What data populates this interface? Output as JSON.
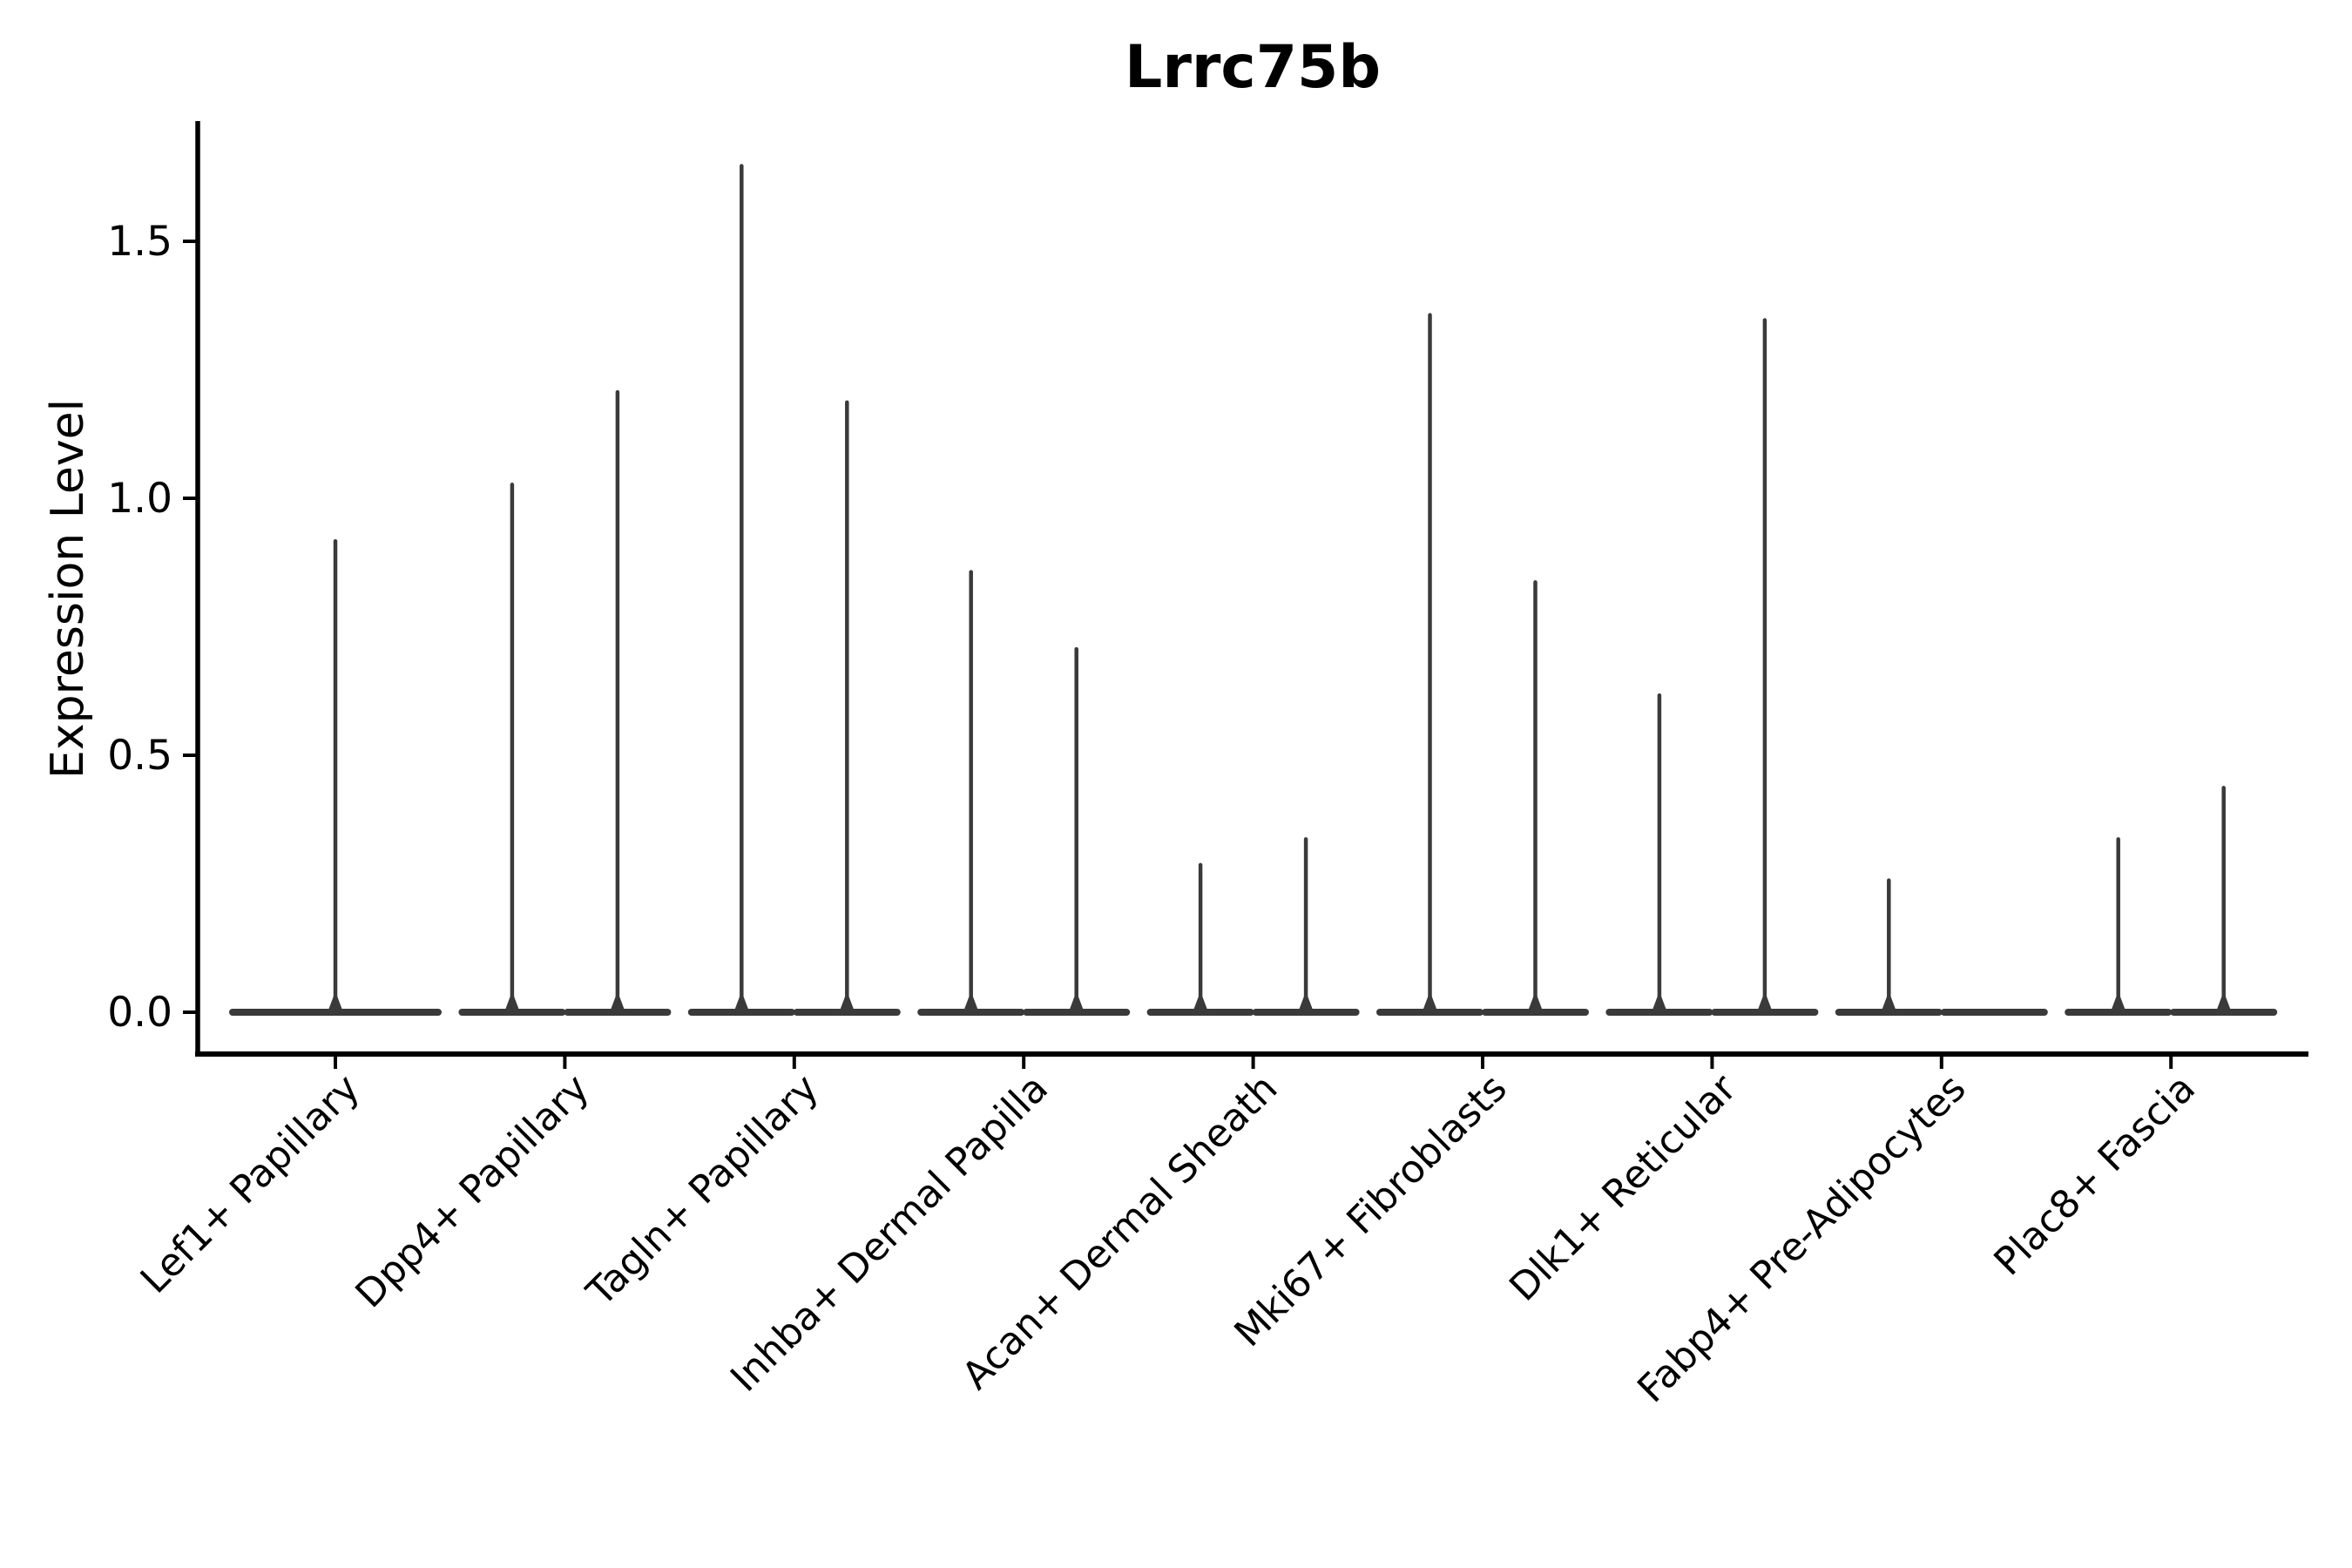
{
  "figure": {
    "background_color": "#ffffff"
  },
  "chart_data": {
    "type": "violin",
    "title": "Lrrc75b",
    "xlabel": "",
    "ylabel": "Expression Level",
    "ylim": [
      -0.08,
      1.73
    ],
    "yticks": [
      {
        "value": 0.0,
        "label": "0.0"
      },
      {
        "value": 0.5,
        "label": "0.5"
      },
      {
        "value": 1.0,
        "label": "1.0"
      },
      {
        "value": 1.5,
        "label": "1.5"
      }
    ],
    "grid": false,
    "legend": false,
    "violin_color": "#3a3a3a",
    "axis_color": "#000000",
    "x_tick_label_rotation_deg": 45,
    "categories": [
      {
        "label": "Lef1+ Papillary",
        "violins": [
          {
            "position": "center",
            "max_expression": 0.92
          }
        ]
      },
      {
        "label": "Dpp4+ Papillary",
        "violins": [
          {
            "position": "left",
            "max_expression": 1.03
          },
          {
            "position": "right",
            "max_expression": 1.21
          }
        ]
      },
      {
        "label": "Tagln+ Papillary",
        "violins": [
          {
            "position": "left",
            "max_expression": 1.65
          },
          {
            "position": "right",
            "max_expression": 1.19
          }
        ]
      },
      {
        "label": "Inhba+ Dermal Papilla",
        "violins": [
          {
            "position": "left",
            "max_expression": 0.86
          },
          {
            "position": "right",
            "max_expression": 0.71
          }
        ]
      },
      {
        "label": "Acan+ Dermal Sheath",
        "violins": [
          {
            "position": "left",
            "max_expression": 0.29
          },
          {
            "position": "right",
            "max_expression": 0.34
          }
        ]
      },
      {
        "label": "Mki67+ Fibroblasts",
        "violins": [
          {
            "position": "left",
            "max_expression": 1.36
          },
          {
            "position": "right",
            "max_expression": 0.84
          }
        ]
      },
      {
        "label": "Dlk1+ Reticular",
        "violins": [
          {
            "position": "left",
            "max_expression": 0.62
          },
          {
            "position": "right",
            "max_expression": 1.35
          }
        ]
      },
      {
        "label": "Fabp4+ Pre-Adipocytes",
        "violins": [
          {
            "position": "left",
            "max_expression": 0.26
          },
          {
            "position": "right",
            "max_expression": 0.0
          }
        ]
      },
      {
        "label": "Plac8+ Fascia",
        "violins": [
          {
            "position": "left",
            "max_expression": 0.34
          },
          {
            "position": "right",
            "max_expression": 0.44
          }
        ]
      }
    ]
  }
}
